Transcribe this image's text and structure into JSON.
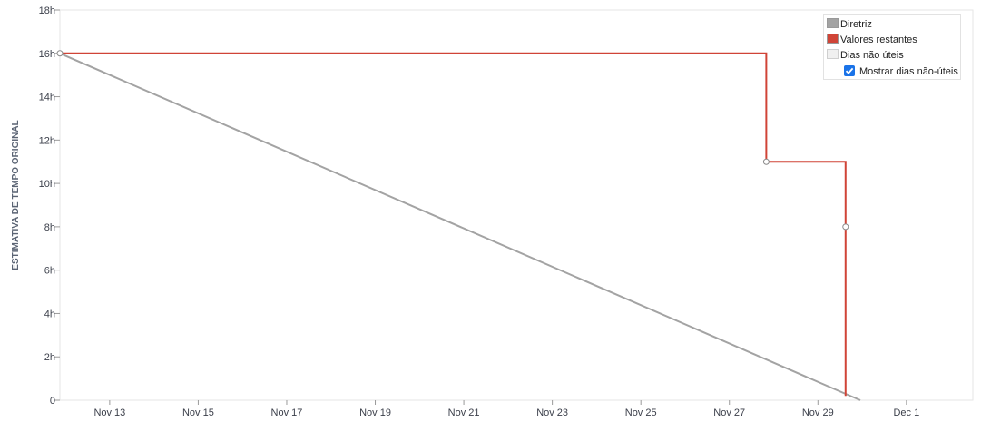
{
  "chart_data": {
    "type": "line",
    "ylabel": "ESTIMATIVA DE TEMPO ORIGINAL",
    "ylim": [
      0,
      18
    ],
    "y_ticks": [
      {
        "value": 0,
        "label": "0"
      },
      {
        "value": 2,
        "label": "2h"
      },
      {
        "value": 4,
        "label": "4h"
      },
      {
        "value": 6,
        "label": "6h"
      },
      {
        "value": 8,
        "label": "8h"
      },
      {
        "value": 10,
        "label": "10h"
      },
      {
        "value": 12,
        "label": "12h"
      },
      {
        "value": 14,
        "label": "14h"
      },
      {
        "value": 16,
        "label": "16h"
      },
      {
        "value": 18,
        "label": "18h"
      }
    ],
    "xlim": [
      "2023-11-11T21:00",
      "2023-12-02T12:00"
    ],
    "x_ticks": [
      {
        "value": "2023-11-13",
        "label": "Nov 13"
      },
      {
        "value": "2023-11-15",
        "label": "Nov 15"
      },
      {
        "value": "2023-11-17",
        "label": "Nov 17"
      },
      {
        "value": "2023-11-19",
        "label": "Nov 19"
      },
      {
        "value": "2023-11-21",
        "label": "Nov 21"
      },
      {
        "value": "2023-11-23",
        "label": "Nov 23"
      },
      {
        "value": "2023-11-25",
        "label": "Nov 25"
      },
      {
        "value": "2023-11-27",
        "label": "Nov 27"
      },
      {
        "value": "2023-11-29",
        "label": "Nov 29"
      },
      {
        "value": "2023-12-01",
        "label": "Dec 1"
      }
    ],
    "grid": {
      "horizontal": false,
      "vertical": false
    },
    "legend_position": "top-right",
    "series": [
      {
        "name": "Diretriz",
        "color": "#a3a3a3",
        "step": false,
        "markers": false,
        "points": [
          {
            "x": "2023-11-11T21:00",
            "y": 16
          },
          {
            "x": "2023-11-29T23:00",
            "y": 0
          }
        ]
      },
      {
        "name": "Valores restantes",
        "color": "#d04437",
        "step": true,
        "markers": true,
        "points": [
          {
            "x": "2023-11-11T21:00",
            "y": 16
          },
          {
            "x": "2023-11-27T20:00",
            "y": 11
          },
          {
            "x": "2023-11-29T15:00",
            "y": 8
          },
          {
            "x": "2023-11-29T15:00",
            "y": 0.2
          }
        ]
      }
    ],
    "legend": {
      "items": [
        {
          "name": "Diretriz",
          "color": "#a3a3a3"
        },
        {
          "name": "Valores restantes",
          "color": "#d04437"
        },
        {
          "name": "Dias não úteis",
          "color": "#f0f0f0"
        }
      ],
      "checkbox_label": "Mostrar dias não-úteis",
      "checkbox_checked": true
    }
  }
}
